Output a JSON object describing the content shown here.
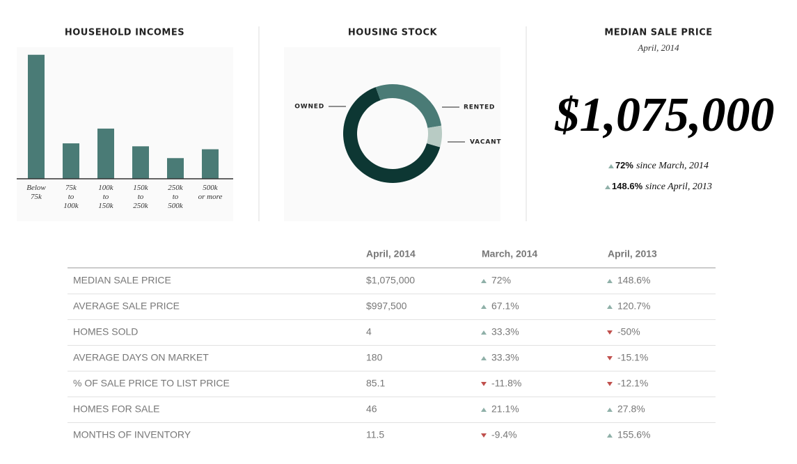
{
  "chart_data": [
    {
      "type": "bar",
      "title": "HOUSEHOLD INCOMES",
      "categories": [
        "Below\n75k",
        "75k\nto\n100k",
        "100k\nto\n150k",
        "150k\nto\n250k",
        "250k\nto\n500k",
        "500k\nor more"
      ],
      "values": [
        42,
        12,
        17,
        11,
        7,
        10
      ],
      "color": "#4a7b76",
      "ylim": [
        0,
        45
      ]
    },
    {
      "type": "pie",
      "title": "HOUSING STOCK",
      "donut": true,
      "categories": [
        "OWNED",
        "RENTED",
        "VACANT"
      ],
      "values": [
        65,
        28,
        7
      ],
      "colors": [
        "#0d3733",
        "#4a7b76",
        "#b8cbc4"
      ]
    }
  ],
  "median": {
    "title": "MEDIAN SALE PRICE",
    "subtitle": "April, 2014",
    "price": "$1,075,000",
    "changes": [
      {
        "value": "72%",
        "text": "since March, 2014",
        "direction": "up"
      },
      {
        "value": "148.6%",
        "text": "since April, 2013",
        "direction": "up"
      }
    ]
  },
  "table": {
    "columns": [
      "April, 2014",
      "March, 2014",
      "April, 2013"
    ],
    "rows": [
      [
        "MEDIAN SALE PRICE",
        "$1,075,000",
        {
          "value": "72%",
          "direction": "up"
        },
        {
          "value": "148.6%",
          "direction": "up"
        }
      ],
      [
        "AVERAGE SALE PRICE",
        "$997,500",
        {
          "value": "67.1%",
          "direction": "up"
        },
        {
          "value": "120.7%",
          "direction": "up"
        }
      ],
      [
        "HOMES SOLD",
        "4",
        {
          "value": "33.3%",
          "direction": "up"
        },
        {
          "value": "-50%",
          "direction": "down"
        }
      ],
      [
        "AVERAGE DAYS ON MARKET",
        "180",
        {
          "value": "33.3%",
          "direction": "up"
        },
        {
          "value": "-15.1%",
          "direction": "down"
        }
      ],
      [
        "% OF SALE PRICE TO LIST PRICE",
        "85.1",
        {
          "value": "-11.8%",
          "direction": "down"
        },
        {
          "value": "-12.1%",
          "direction": "down"
        }
      ],
      [
        "HOMES FOR SALE",
        "46",
        {
          "value": "21.1%",
          "direction": "up"
        },
        {
          "value": "27.8%",
          "direction": "up"
        }
      ],
      [
        "MONTHS OF INVENTORY",
        "11.5",
        {
          "value": "-9.4%",
          "direction": "down"
        },
        {
          "value": "155.6%",
          "direction": "up"
        }
      ]
    ]
  }
}
